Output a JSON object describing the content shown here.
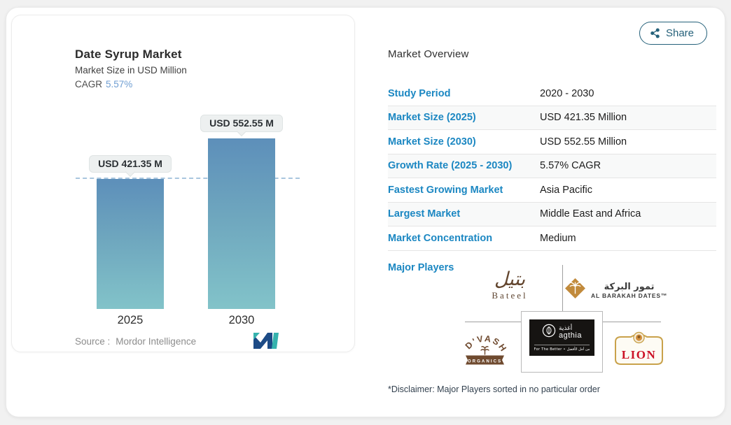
{
  "share": {
    "label": "Share"
  },
  "chart": {
    "title": "Date Syrup Market",
    "subtitle": "Market Size in USD Million",
    "cagr_label": "CAGR",
    "cagr_value": "5.57%",
    "source_label": "Source :",
    "source_value": "Mordor Intelligence",
    "bars": [
      {
        "year": "2025",
        "label": "USD 421.35 M"
      },
      {
        "year": "2030",
        "label": "USD 552.55 M"
      }
    ]
  },
  "chart_data": {
    "type": "bar",
    "categories": [
      "2025",
      "2030"
    ],
    "values": [
      421.35,
      552.55
    ],
    "title": "Date Syrup Market",
    "subtitle": "Market Size in USD Million",
    "cagr": "5.57%",
    "unit": "USD Million",
    "data_labels": [
      "USD 421.35 M",
      "USD 552.55 M"
    ],
    "reference_line": 421.35,
    "source": "Mordor Intelligence",
    "grid": false,
    "legend": false,
    "bar_gradient": [
      "#5d8fba",
      "#82c3c9"
    ]
  },
  "overview": {
    "heading": "Market Overview",
    "rows": [
      {
        "label": "Study Period",
        "value": "2020 - 2030"
      },
      {
        "label": "Market Size (2025)",
        "value": "USD 421.35 Million"
      },
      {
        "label": "Market Size (2030)",
        "value": "USD 552.55 Million"
      },
      {
        "label": "Growth Rate (2025 - 2030)",
        "value": "5.57% CAGR"
      },
      {
        "label": "Fastest Growing Market",
        "value": "Asia Pacific"
      },
      {
        "label": "Largest Market",
        "value": "Middle East and Africa"
      },
      {
        "label": "Market Concentration",
        "value": "Medium"
      }
    ],
    "major_players_label": "Major Players",
    "players": [
      {
        "name": "Bateel",
        "arabic": "بتيل",
        "wordmark": "Bateel"
      },
      {
        "name": "Al Barakah Dates",
        "arabic": "تمور البركة",
        "wordmark": "AL BARAKAH DATES™"
      },
      {
        "name": "D'Vash Organics",
        "line1": "D'VASH",
        "line2": "ORGANICS"
      },
      {
        "name": "Agthia",
        "arabic": "أغذية",
        "wordmark": "agthia",
        "tagline": "For The Better • من أجل الأفضل"
      },
      {
        "name": "Lion",
        "wordmark": "LION"
      }
    ],
    "disclaimer": "*Disclaimer: Major Players sorted in no particular order"
  },
  "colors": {
    "accent_blue": "#1b87c2",
    "share_teal": "#25617a",
    "cagr_blue": "#6f9ed2",
    "dashed_line": "#a9c6de",
    "logo_navy": "#1d4b86",
    "logo_teal": "#35b2ad"
  }
}
